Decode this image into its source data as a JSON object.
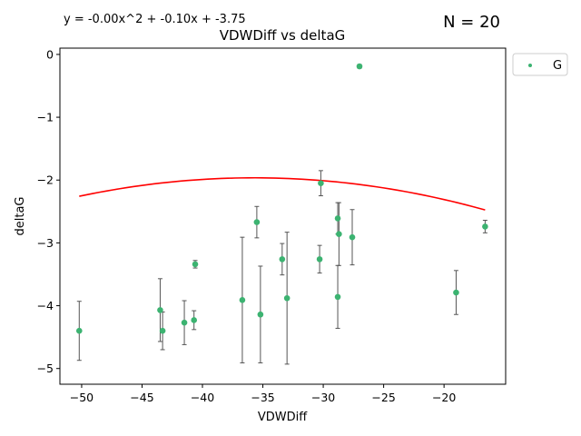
{
  "chart_data": {
    "type": "scatter",
    "title": "VDWDiff vs deltaG",
    "xlabel": "VDWDiff",
    "ylabel": "deltaG",
    "equation": "y = -0.00x^2 + -0.10x + -3.75",
    "n_label": "N = 20",
    "xlim": [
      -51.8,
      -14.9
    ],
    "ylim": [
      -5.25,
      0.1
    ],
    "x_ticks": [
      -50,
      -45,
      -40,
      -35,
      -30,
      -25,
      -20
    ],
    "y_ticks": [
      0,
      -1,
      -2,
      -3,
      -4,
      -5
    ],
    "x_tick_labels": [
      "−50",
      "−45",
      "−40",
      "−35",
      "−30",
      "−25",
      "−20"
    ],
    "y_tick_labels": [
      "0",
      "−1",
      "−2",
      "−3",
      "−4",
      "−5"
    ],
    "grid": false,
    "legend_position": "outside-top-right",
    "series": [
      {
        "name": "G",
        "color": "#3cb371",
        "points": [
          {
            "x": -50.2,
            "y": -4.4,
            "err": 0.47
          },
          {
            "x": -43.5,
            "y": -4.07,
            "err": 0.5
          },
          {
            "x": -43.3,
            "y": -4.4,
            "err": 0.3
          },
          {
            "x": -41.5,
            "y": -4.27,
            "err": 0.35
          },
          {
            "x": -40.7,
            "y": -4.23,
            "err": 0.15
          },
          {
            "x": -40.6,
            "y": -3.34,
            "err": 0.06
          },
          {
            "x": -36.7,
            "y": -3.91,
            "err": 1.0
          },
          {
            "x": -35.5,
            "y": -2.67,
            "err": 0.25
          },
          {
            "x": -35.2,
            "y": -4.14,
            "err": 0.77
          },
          {
            "x": -33.4,
            "y": -3.26,
            "err": 0.25
          },
          {
            "x": -33.0,
            "y": -3.88,
            "err": 1.05
          },
          {
            "x": -30.3,
            "y": -3.26,
            "err": 0.22
          },
          {
            "x": -30.2,
            "y": -2.05,
            "err": 0.2
          },
          {
            "x": -28.8,
            "y": -2.61,
            "err": 0.25
          },
          {
            "x": -28.8,
            "y": -3.86,
            "err": 0.5
          },
          {
            "x": -28.7,
            "y": -2.86,
            "err": 0.5
          },
          {
            "x": -27.6,
            "y": -2.91,
            "err": 0.44
          },
          {
            "x": -27.0,
            "y": -0.19,
            "err": 0.03
          },
          {
            "x": -19.0,
            "y": -3.79,
            "err": 0.35
          },
          {
            "x": -16.6,
            "y": -2.74,
            "err": 0.1
          }
        ]
      }
    ],
    "fit_line": {
      "color": "#ff0000",
      "coefficients": [
        -0.0014,
        -0.1,
        -3.75
      ]
    }
  }
}
